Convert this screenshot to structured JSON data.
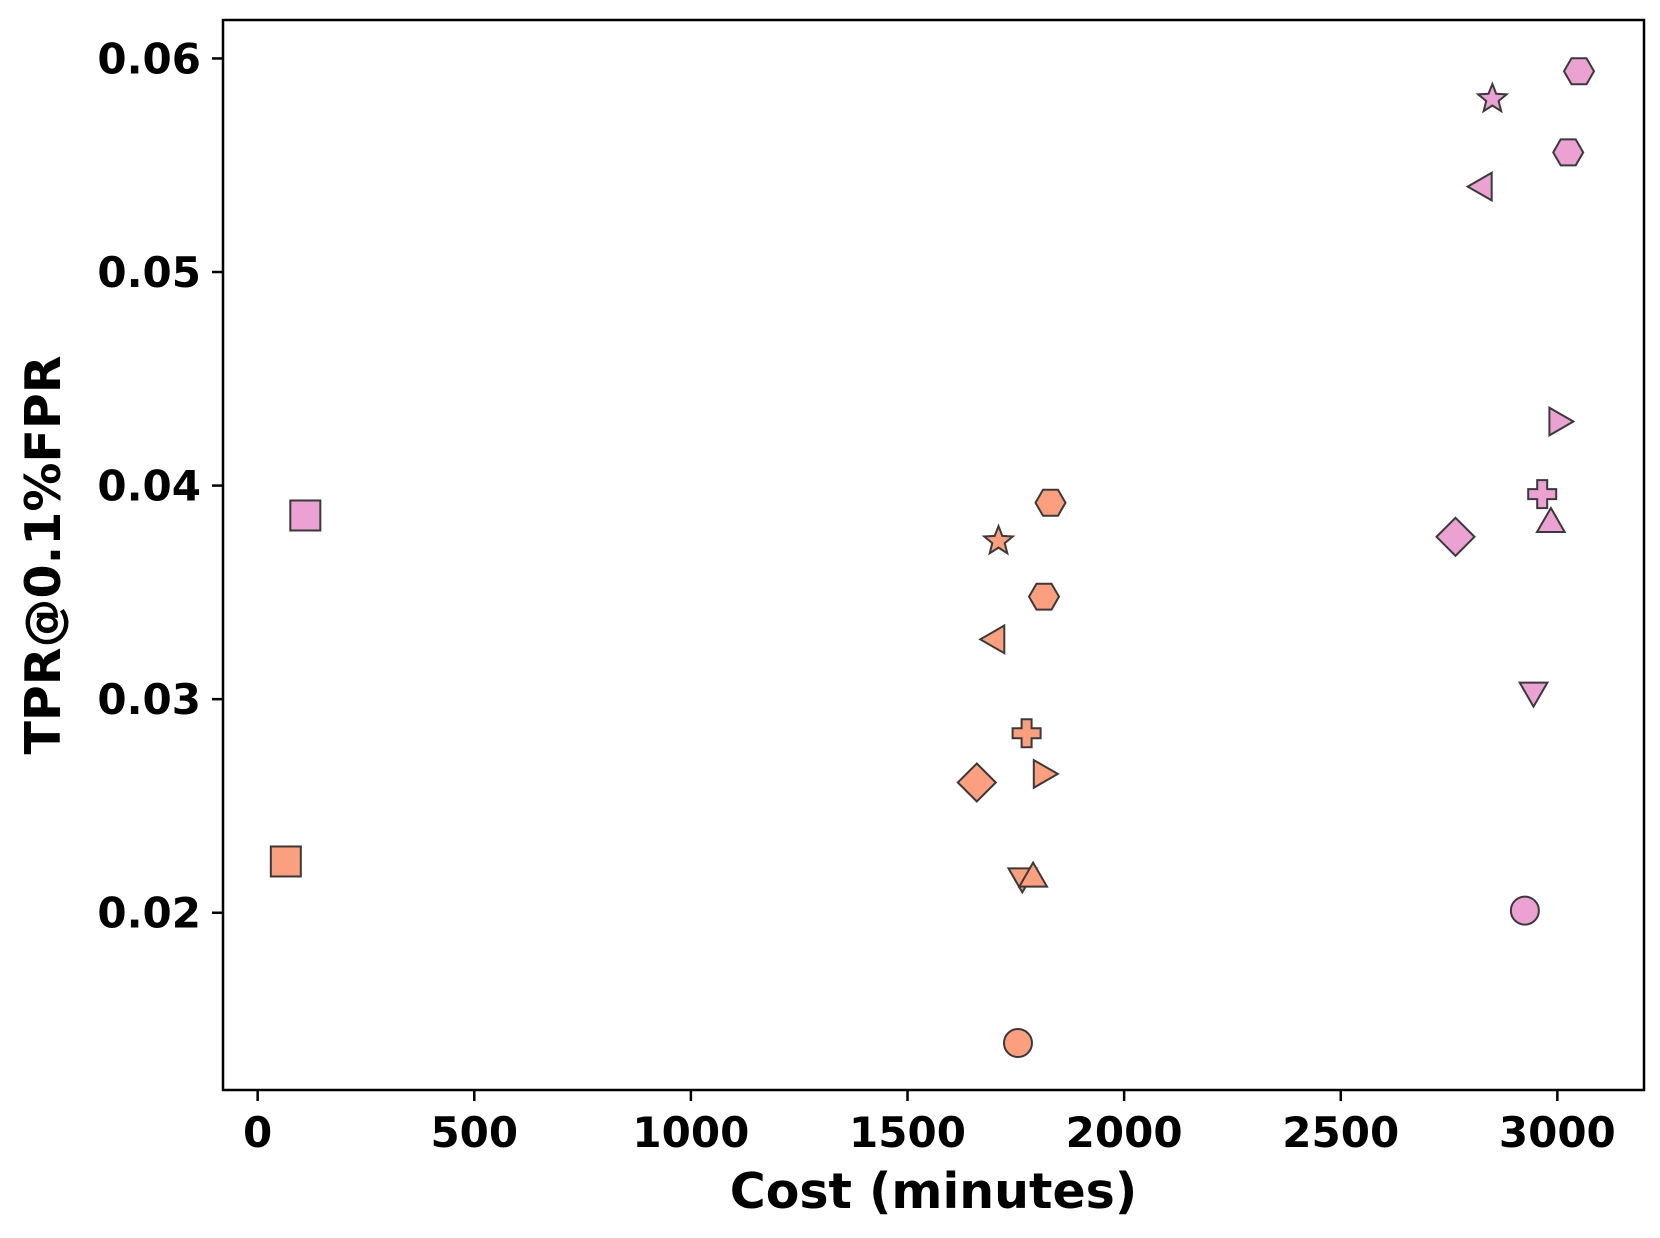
{
  "chart_data": {
    "type": "scatter",
    "title": "",
    "xlabel": "Cost (minutes)",
    "ylabel": "TPR@0.1%FPR",
    "xlim": [
      -80,
      3200
    ],
    "ylim": [
      0.0117,
      0.0618
    ],
    "xticks": [
      0,
      500,
      1000,
      1500,
      2000,
      2500,
      3000
    ],
    "yticks": [
      0.02,
      0.03,
      0.04,
      0.05,
      0.06
    ],
    "xtick_labels": [
      "0",
      "500",
      "1000",
      "1500",
      "2000",
      "2500",
      "3000"
    ],
    "ytick_labels": [
      "0.02",
      "0.03",
      "0.04",
      "0.05",
      "0.06"
    ],
    "grid": false,
    "legend": "none",
    "series": [
      {
        "color": "#fc9f7e",
        "points": [
          {
            "x": 65,
            "y": 0.0224,
            "marker": "square"
          },
          {
            "x": 1660,
            "y": 0.0261,
            "marker": "diamond"
          },
          {
            "x": 1710,
            "y": 0.0374,
            "marker": "star"
          },
          {
            "x": 1705,
            "y": 0.0328,
            "marker": "triangle-left"
          },
          {
            "x": 1775,
            "y": 0.0284,
            "marker": "plus"
          },
          {
            "x": 1810,
            "y": 0.0265,
            "marker": "triangle-right"
          },
          {
            "x": 1830,
            "y": 0.0392,
            "marker": "hexagon"
          },
          {
            "x": 1815,
            "y": 0.0348,
            "marker": "hexagon"
          },
          {
            "x": 1765,
            "y": 0.0217,
            "marker": "triangle-down"
          },
          {
            "x": 1790,
            "y": 0.0216,
            "marker": "triangle-up"
          },
          {
            "x": 1755,
            "y": 0.0139,
            "marker": "circle"
          }
        ]
      },
      {
        "color": "#eba1d2",
        "points": [
          {
            "x": 110,
            "y": 0.0386,
            "marker": "square"
          },
          {
            "x": 2765,
            "y": 0.0376,
            "marker": "diamond"
          },
          {
            "x": 2850,
            "y": 0.0581,
            "marker": "star"
          },
          {
            "x": 2830,
            "y": 0.054,
            "marker": "triangle-left"
          },
          {
            "x": 2965,
            "y": 0.0396,
            "marker": "plus"
          },
          {
            "x": 3000,
            "y": 0.043,
            "marker": "triangle-right"
          },
          {
            "x": 3050,
            "y": 0.0594,
            "marker": "hexagon"
          },
          {
            "x": 3025,
            "y": 0.0556,
            "marker": "hexagon"
          },
          {
            "x": 2945,
            "y": 0.0304,
            "marker": "triangle-down"
          },
          {
            "x": 2985,
            "y": 0.0382,
            "marker": "triangle-up"
          },
          {
            "x": 2925,
            "y": 0.0201,
            "marker": "circle"
          }
        ]
      }
    ]
  }
}
